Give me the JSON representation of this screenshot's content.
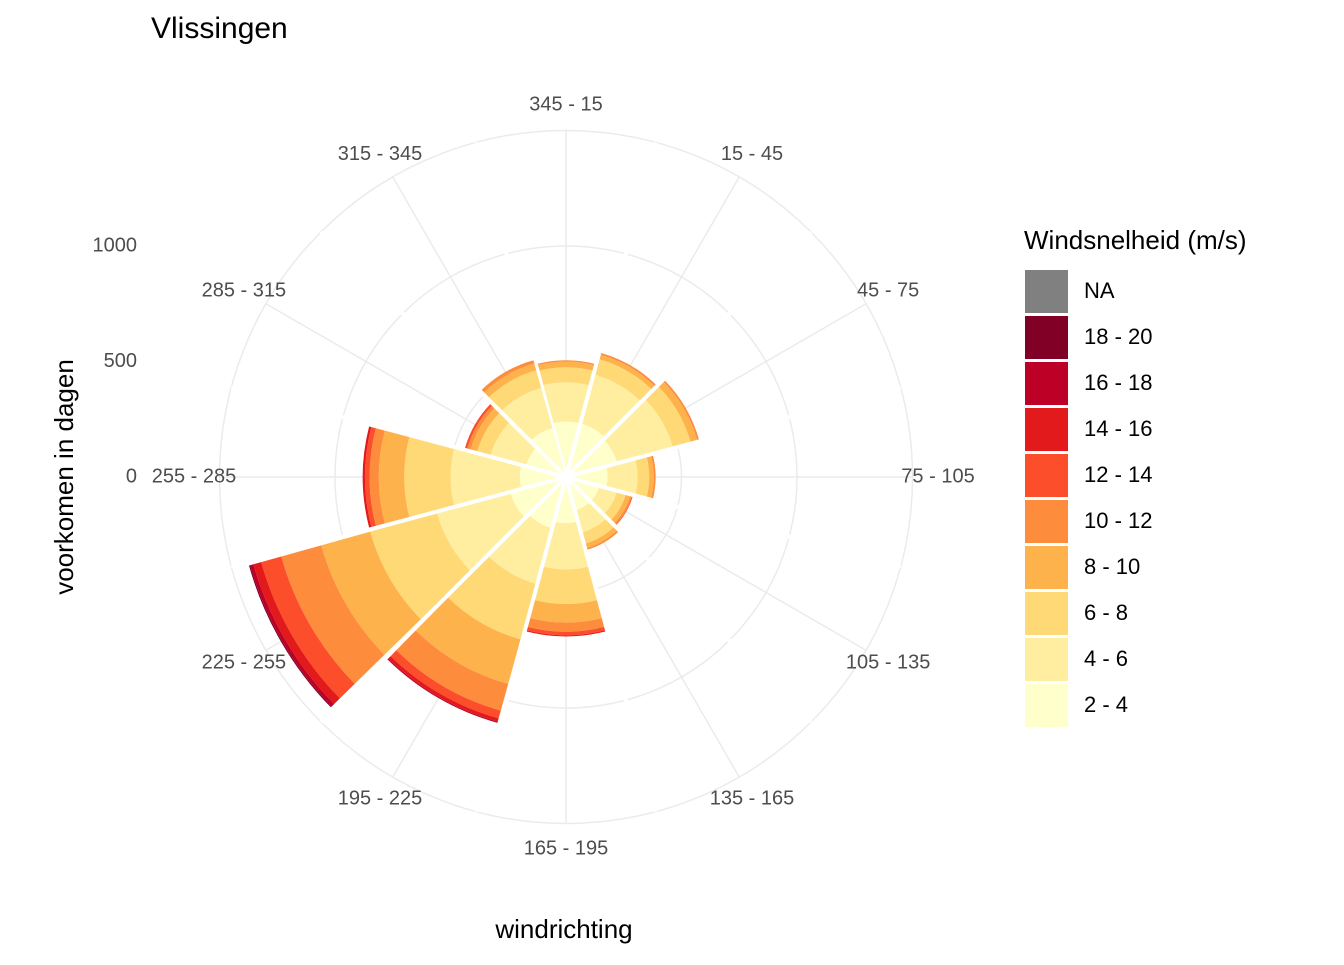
{
  "chart_data": {
    "type": "windrose",
    "title": "Vlissingen",
    "x_label": "windrichting",
    "y_label": "voorkomen in dagen",
    "legend_title": "Windsnelheid (m/s)",
    "categories": [
      "345 - 15",
      "15 - 45",
      "45 - 75",
      "75 - 105",
      "105 - 135",
      "135 - 165",
      "165 - 195",
      "195 - 225",
      "225 - 255",
      "255 - 285",
      "285 - 315",
      "315 - 345"
    ],
    "ylim": [
      0,
      1500
    ],
    "yticks": [
      0,
      500,
      1000
    ],
    "grid": true,
    "series": [
      {
        "name": "2 - 4",
        "color": "#ffffcc",
        "values": [
          240,
          240,
          230,
          180,
          150,
          150,
          200,
          230,
          250,
          200,
          180,
          220
        ]
      },
      {
        "name": "4 - 6",
        "color": "#ffeda0",
        "values": [
          170,
          220,
          250,
          130,
          80,
          100,
          200,
          250,
          330,
          300,
          160,
          180
        ]
      },
      {
        "name": "6 - 8",
        "color": "#fed976",
        "values": [
          65,
          70,
          80,
          50,
          40,
          50,
          150,
          250,
          300,
          200,
          60,
          80
        ]
      },
      {
        "name": "8 - 10",
        "color": "#feb24c",
        "values": [
          25,
          20,
          30,
          20,
          20,
          20,
          80,
          200,
          220,
          110,
          30,
          30
        ]
      },
      {
        "name": "10 - 12",
        "color": "#fd8d3c",
        "values": [
          5,
          8,
          8,
          8,
          8,
          8,
          40,
          120,
          180,
          40,
          15,
          15
        ]
      },
      {
        "name": "12 - 14",
        "color": "#fc4e2a",
        "values": [
          0,
          0,
          0,
          0,
          3,
          0,
          15,
          35,
          90,
          20,
          10,
          0
        ]
      },
      {
        "name": "14 - 16",
        "color": "#e31a1c",
        "values": [
          0,
          0,
          0,
          0,
          0,
          0,
          5,
          15,
          35,
          10,
          0,
          0
        ]
      },
      {
        "name": "16 - 18",
        "color": "#bd0026",
        "values": [
          0,
          0,
          0,
          0,
          0,
          0,
          0,
          5,
          15,
          0,
          0,
          0
        ]
      },
      {
        "name": "18 - 20",
        "color": "#800026",
        "values": [
          0,
          0,
          0,
          0,
          0,
          0,
          0,
          0,
          5,
          0,
          0,
          0
        ]
      },
      {
        "name": "NA",
        "color": "#808080",
        "values": [
          0,
          0,
          0,
          0,
          0,
          0,
          0,
          0,
          0,
          0,
          0,
          0
        ]
      }
    ]
  }
}
